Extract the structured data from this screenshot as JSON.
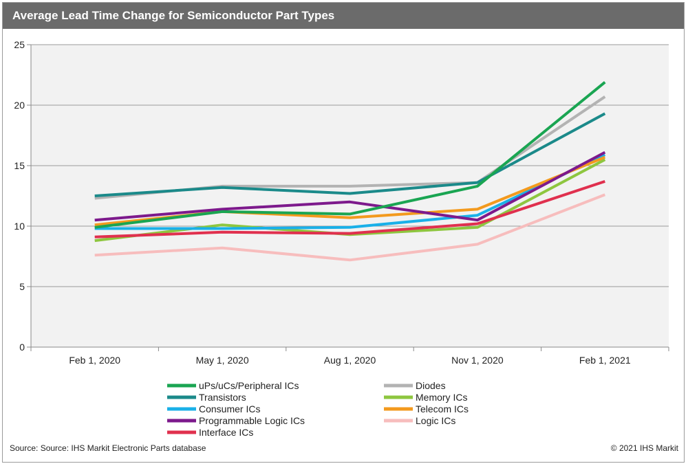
{
  "title": "Average Lead Time Change for Semiconductor Part Types",
  "source": "Source: Source: IHS Markit Electronic Parts database",
  "copyright": "© 2021 IHS Markit",
  "chart_data": {
    "type": "line",
    "x": [
      "Feb 1, 2020",
      "May 1, 2020",
      "Aug 1, 2020",
      "Nov 1, 2020",
      "Feb 1, 2021"
    ],
    "ylim": [
      0,
      25
    ],
    "yticks": [
      0,
      5,
      10,
      15,
      20,
      25
    ],
    "grid": true,
    "legend_position": "bottom",
    "series": [
      {
        "name": "uPs/uCs/Peripheral ICs",
        "color": "#1aa552",
        "values": [
          9.9,
          11.2,
          11.0,
          13.3,
          21.9
        ]
      },
      {
        "name": "Diodes",
        "color": "#b3b3b3",
        "values": [
          12.3,
          13.3,
          13.3,
          13.6,
          20.7
        ]
      },
      {
        "name": "Transistors",
        "color": "#1b8a8a",
        "values": [
          12.5,
          13.2,
          12.7,
          13.6,
          19.3
        ]
      },
      {
        "name": "Memory ICs",
        "color": "#8ec63f",
        "values": [
          8.8,
          10.1,
          9.3,
          9.9,
          15.5
        ]
      },
      {
        "name": "Consumer ICs",
        "color": "#1ab0e8",
        "values": [
          9.8,
          9.8,
          9.9,
          10.9,
          15.9
        ]
      },
      {
        "name": "Telecom ICs",
        "color": "#f39a1e",
        "values": [
          10.1,
          11.2,
          10.7,
          11.4,
          15.7
        ]
      },
      {
        "name": "Programmable Logic ICs",
        "color": "#7d1a8c",
        "values": [
          10.5,
          11.4,
          12.0,
          10.5,
          16.1
        ]
      },
      {
        "name": "Logic ICs",
        "color": "#f7bdbd",
        "values": [
          7.6,
          8.2,
          7.2,
          8.5,
          12.6
        ]
      },
      {
        "name": "Interface ICs",
        "color": "#e0304e",
        "values": [
          9.1,
          9.5,
          9.4,
          10.2,
          13.7
        ]
      }
    ]
  }
}
